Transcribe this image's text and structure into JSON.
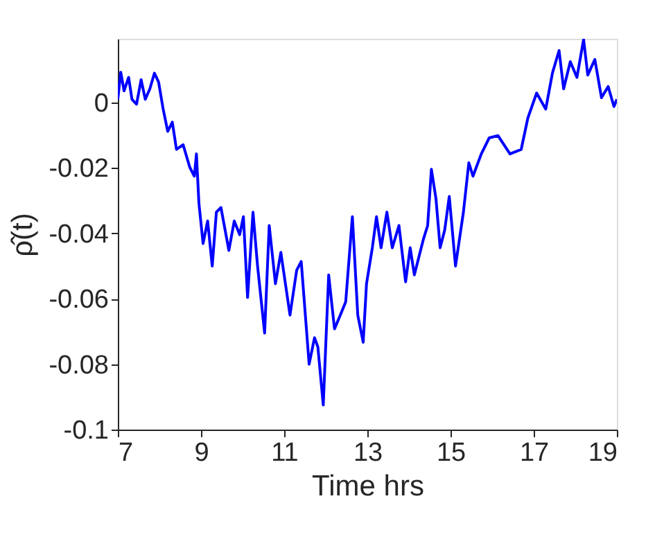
{
  "chart_data": {
    "type": "line",
    "xlabel": "Time hrs",
    "ylabel": "ρ̂(t)",
    "xlim": [
      7,
      19
    ],
    "xticks": [
      7,
      9,
      11,
      13,
      15,
      17,
      19
    ],
    "ylim": [
      -0.1,
      0.0195
    ],
    "yticks": [
      -0.1,
      -0.08,
      -0.06,
      -0.04,
      -0.02,
      0
    ],
    "grid": false,
    "marker": "none",
    "line_style": "solid",
    "series": [
      {
        "color": "#0000ff",
        "x": [
          7.0,
          7.07,
          7.15,
          7.26,
          7.34,
          7.45,
          7.56,
          7.66,
          7.77,
          7.88,
          7.98,
          8.09,
          8.2,
          8.31,
          8.41,
          8.57,
          8.73,
          8.84,
          8.89,
          8.95,
          9.05,
          9.16,
          9.27,
          9.37,
          9.48,
          9.67,
          9.8,
          9.93,
          10.02,
          10.12,
          10.25,
          10.36,
          10.53,
          10.64,
          10.79,
          10.92,
          11.14,
          11.3,
          11.41,
          11.6,
          11.73,
          11.81,
          11.94,
          12.07,
          12.21,
          12.35,
          12.48,
          12.64,
          12.77,
          12.9,
          12.98,
          13.12,
          13.22,
          13.33,
          13.47,
          13.6,
          13.76,
          13.92,
          14.03,
          14.13,
          14.35,
          14.45,
          14.54,
          14.65,
          14.75,
          14.86,
          14.97,
          15.12,
          15.31,
          15.44,
          15.54,
          15.74,
          15.93,
          16.14,
          16.43,
          16.7,
          16.86,
          17.07,
          17.29,
          17.45,
          17.61,
          17.72,
          17.88,
          18.04,
          18.2,
          18.3,
          18.47,
          18.63,
          18.79,
          18.93,
          19.0
        ],
        "values": [
          0.001,
          0.0093,
          0.0036,
          0.0077,
          0.001,
          -0.0005,
          0.007,
          0.001,
          0.0042,
          0.009,
          0.0063,
          -0.002,
          -0.0088,
          -0.006,
          -0.0143,
          -0.0129,
          -0.0198,
          -0.0225,
          -0.0157,
          -0.0308,
          -0.0431,
          -0.0362,
          -0.05,
          -0.0335,
          -0.0321,
          -0.0452,
          -0.0362,
          -0.0404,
          -0.0349,
          -0.0596,
          -0.0335,
          -0.05,
          -0.0705,
          -0.0376,
          -0.0554,
          -0.0458,
          -0.065,
          -0.0513,
          -0.0486,
          -0.08,
          -0.0719,
          -0.0747,
          -0.0925,
          -0.0527,
          -0.0692,
          -0.065,
          -0.0609,
          -0.0349,
          -0.065,
          -0.0733,
          -0.0554,
          -0.0444,
          -0.0349,
          -0.0444,
          -0.0335,
          -0.0444,
          -0.0376,
          -0.0548,
          -0.0444,
          -0.0527,
          -0.0417,
          -0.0376,
          -0.0204,
          -0.0294,
          -0.0444,
          -0.039,
          -0.0287,
          -0.05,
          -0.0335,
          -0.0184,
          -0.0225,
          -0.0157,
          -0.0108,
          -0.0101,
          -0.0157,
          -0.0143,
          -0.0047,
          0.0029,
          -0.002,
          0.009,
          0.0159,
          0.0042,
          0.0125,
          0.0077,
          0.0193,
          0.0084,
          0.0132,
          0.0015,
          0.0049,
          -0.0012,
          0.001
        ]
      }
    ]
  }
}
